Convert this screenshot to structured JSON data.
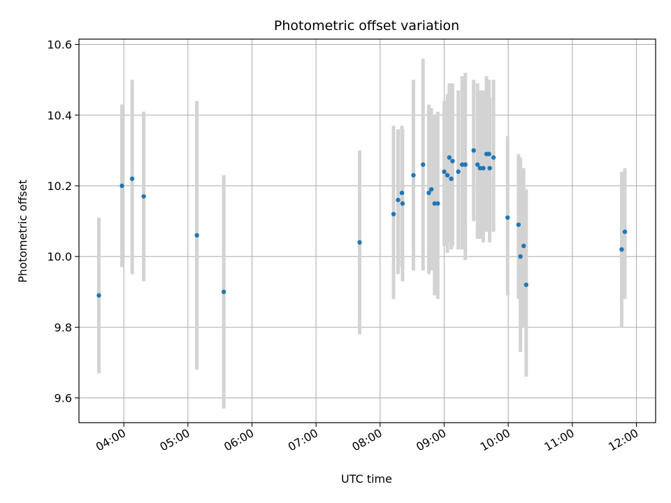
{
  "chart_data": {
    "type": "scatter",
    "title": "Photometric offset variation",
    "xlabel": "UTC time",
    "ylabel": "Photometric offset",
    "x_unit": "time of day (UTC, decimal hours)",
    "xlim": [
      3.3,
      12.3
    ],
    "ylim": [
      9.53,
      10.615
    ],
    "x_ticks": [
      4,
      5,
      6,
      7,
      8,
      9,
      10,
      11,
      12
    ],
    "x_tick_labels": [
      "04:00",
      "05:00",
      "06:00",
      "07:00",
      "08:00",
      "09:00",
      "10:00",
      "11:00",
      "12:00"
    ],
    "y_ticks": [
      9.6,
      9.8,
      10.0,
      10.2,
      10.4,
      10.6
    ],
    "y_tick_labels": [
      "9.6",
      "9.8",
      "10.0",
      "10.2",
      "10.4",
      "10.6"
    ],
    "grid": true,
    "colors": {
      "point": "#1f77b4",
      "errorbar": "#d3d3d3",
      "grid": "#b0b0b0"
    },
    "points": [
      {
        "x": 3.61,
        "y": 9.89,
        "ylo": 9.67,
        "yhi": 10.11
      },
      {
        "x": 3.97,
        "y": 10.2,
        "ylo": 9.97,
        "yhi": 10.43
      },
      {
        "x": 4.13,
        "y": 10.22,
        "ylo": 9.95,
        "yhi": 10.5
      },
      {
        "x": 4.31,
        "y": 10.17,
        "ylo": 9.93,
        "yhi": 10.41
      },
      {
        "x": 5.14,
        "y": 10.06,
        "ylo": 9.68,
        "yhi": 10.44
      },
      {
        "x": 5.56,
        "y": 9.9,
        "ylo": 9.57,
        "yhi": 10.23
      },
      {
        "x": 7.68,
        "y": 10.04,
        "ylo": 9.78,
        "yhi": 10.3
      },
      {
        "x": 8.21,
        "y": 10.12,
        "ylo": 9.88,
        "yhi": 10.37
      },
      {
        "x": 8.28,
        "y": 10.16,
        "ylo": 9.95,
        "yhi": 10.36
      },
      {
        "x": 8.34,
        "y": 10.18,
        "ylo": 9.97,
        "yhi": 10.37
      },
      {
        "x": 8.35,
        "y": 10.15,
        "ylo": 9.93,
        "yhi": 10.36
      },
      {
        "x": 8.52,
        "y": 10.23,
        "ylo": 9.96,
        "yhi": 10.5
      },
      {
        "x": 8.67,
        "y": 10.26,
        "ylo": 9.96,
        "yhi": 10.56
      },
      {
        "x": 8.76,
        "y": 10.18,
        "ylo": 9.95,
        "yhi": 10.43
      },
      {
        "x": 8.8,
        "y": 10.19,
        "ylo": 9.96,
        "yhi": 10.42
      },
      {
        "x": 8.85,
        "y": 10.15,
        "ylo": 9.89,
        "yhi": 10.4
      },
      {
        "x": 8.9,
        "y": 10.15,
        "ylo": 9.88,
        "yhi": 10.41
      },
      {
        "x": 9.0,
        "y": 10.24,
        "ylo": 10.03,
        "yhi": 10.44
      },
      {
        "x": 9.05,
        "y": 10.23,
        "ylo": 10.01,
        "yhi": 10.46
      },
      {
        "x": 9.08,
        "y": 10.28,
        "ylo": 10.04,
        "yhi": 10.49
      },
      {
        "x": 9.11,
        "y": 10.22,
        "ylo": 10.02,
        "yhi": 10.44
      },
      {
        "x": 9.13,
        "y": 10.27,
        "ylo": 10.03,
        "yhi": 10.49
      },
      {
        "x": 9.22,
        "y": 10.24,
        "ylo": 10.02,
        "yhi": 10.47
      },
      {
        "x": 9.28,
        "y": 10.26,
        "ylo": 10.02,
        "yhi": 10.51
      },
      {
        "x": 9.33,
        "y": 10.26,
        "ylo": 9.99,
        "yhi": 10.52
      },
      {
        "x": 9.46,
        "y": 10.3,
        "ylo": 10.1,
        "yhi": 10.5
      },
      {
        "x": 9.52,
        "y": 10.26,
        "ylo": 10.05,
        "yhi": 10.49
      },
      {
        "x": 9.56,
        "y": 10.25,
        "ylo": 10.05,
        "yhi": 10.47
      },
      {
        "x": 9.61,
        "y": 10.25,
        "ylo": 10.04,
        "yhi": 10.47
      },
      {
        "x": 9.66,
        "y": 10.29,
        "ylo": 10.07,
        "yhi": 10.51
      },
      {
        "x": 9.7,
        "y": 10.29,
        "ylo": 10.08,
        "yhi": 10.5
      },
      {
        "x": 9.71,
        "y": 10.25,
        "ylo": 10.04,
        "yhi": 10.45
      },
      {
        "x": 9.77,
        "y": 10.28,
        "ylo": 10.07,
        "yhi": 10.5
      },
      {
        "x": 9.99,
        "y": 10.11,
        "ylo": 9.89,
        "yhi": 10.34
      },
      {
        "x": 10.16,
        "y": 10.09,
        "ylo": 9.88,
        "yhi": 10.29
      },
      {
        "x": 10.19,
        "y": 10.0,
        "ylo": 9.73,
        "yhi": 10.28
      },
      {
        "x": 10.24,
        "y": 10.03,
        "ylo": 9.8,
        "yhi": 10.25
      },
      {
        "x": 10.28,
        "y": 9.92,
        "ylo": 9.66,
        "yhi": 10.19
      },
      {
        "x": 11.77,
        "y": 10.02,
        "ylo": 9.8,
        "yhi": 10.24
      },
      {
        "x": 11.82,
        "y": 10.07,
        "ylo": 9.88,
        "yhi": 10.25
      }
    ]
  }
}
